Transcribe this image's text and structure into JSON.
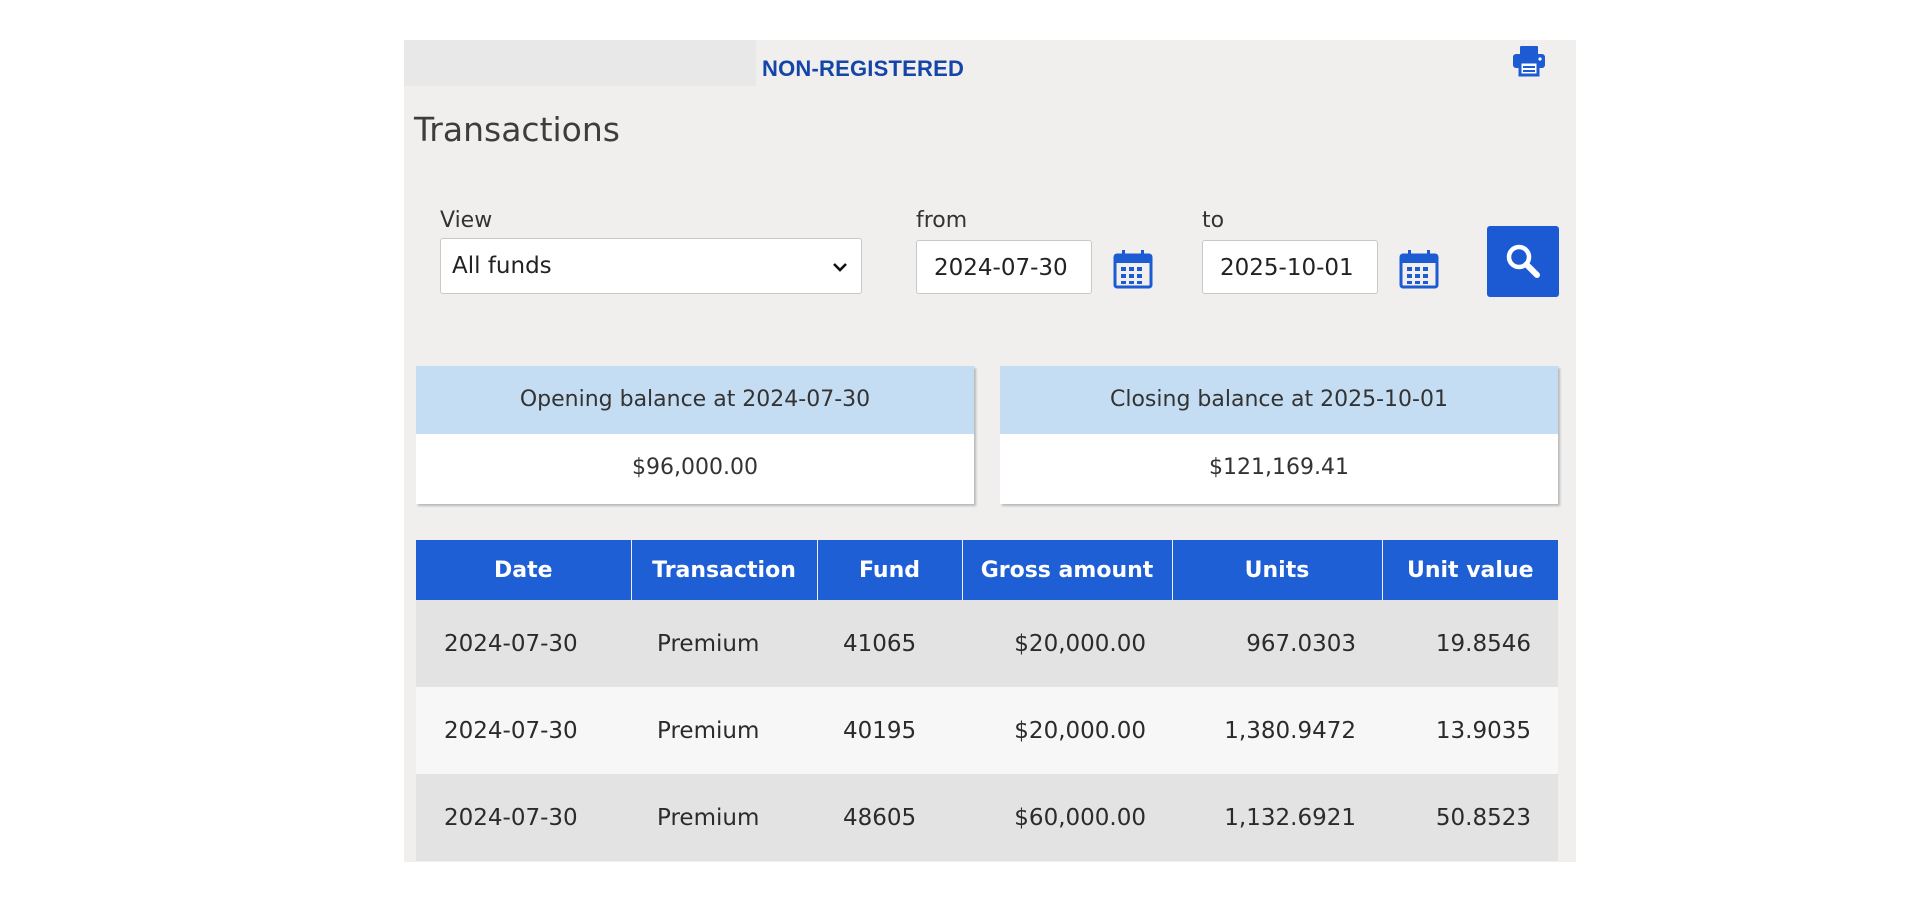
{
  "header": {
    "account_title": "NON-REGISTERED",
    "print_icon": "printer-icon"
  },
  "page": {
    "title": "Transactions"
  },
  "filters": {
    "view_label": "View",
    "view_value": "All funds",
    "from_label": "from",
    "from_value": "2024-07-30",
    "to_label": "to",
    "to_value": "2025-10-01",
    "calendar_icon": "calendar-icon",
    "search_icon": "search-icon"
  },
  "balances": {
    "opening_label": "Opening balance at 2024-07-30",
    "opening_amount": "$96,000.00",
    "closing_label": "Closing balance at 2025-10-01",
    "closing_amount": "$121,169.41"
  },
  "table": {
    "headers": [
      "Date",
      "Transaction",
      "Fund",
      "Gross amount",
      "Units",
      "Unit value"
    ],
    "rows": [
      [
        "2024-07-30",
        "Premium",
        "41065",
        "$20,000.00",
        "967.0303",
        "19.8546"
      ],
      [
        "2024-07-30",
        "Premium",
        "40195",
        "$20,000.00",
        "1,380.9472",
        "13.9035"
      ],
      [
        "2024-07-30",
        "Premium",
        "48605",
        "$60,000.00",
        "1,132.6921",
        "50.8523"
      ]
    ]
  },
  "colors": {
    "accent": "#1e5fd6",
    "account_title": "#1346a8",
    "balance_header": "#c5ddf2",
    "panel_bg": "#f0efee"
  }
}
